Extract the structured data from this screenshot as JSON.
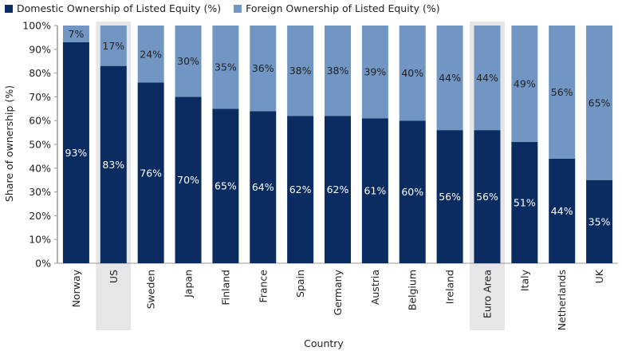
{
  "colors": {
    "domestic": "#0b2c60",
    "foreign": "#7196c4",
    "highlight": "#e6e6e8",
    "axis": "#9a9a9a"
  },
  "chart_data": {
    "type": "bar",
    "stacked": true,
    "title": "",
    "xlabel": "Country",
    "ylabel": "Share of ownership (%)",
    "ylim": [
      0,
      100
    ],
    "yticks": [
      "0%",
      "10%",
      "20%",
      "30%",
      "40%",
      "50%",
      "60%",
      "70%",
      "80%",
      "90%",
      "100%"
    ],
    "legend_position": "top-left",
    "categories": [
      "Norway",
      "US",
      "Sweden",
      "Japan",
      "Finland",
      "France",
      "Spain",
      "Germany",
      "Austria",
      "Belgium",
      "Ireland",
      "Euro Area",
      "Italy",
      "Netherlands",
      "UK"
    ],
    "highlighted": [
      "US",
      "Euro Area"
    ],
    "series": [
      {
        "name": "Domestic Ownership of Listed Equity (%)",
        "values": [
          93,
          83,
          76,
          70,
          65,
          64,
          62,
          62,
          61,
          60,
          56,
          56,
          51,
          44,
          35
        ],
        "labels": [
          "93%",
          "83%",
          "76%",
          "70%",
          "65%",
          "64%",
          "62%",
          "62%",
          "61%",
          "60%",
          "56%",
          "56%",
          "51%",
          "44%",
          "35%"
        ]
      },
      {
        "name": "Foreign Ownership of Listed Equity (%)",
        "values": [
          7,
          17,
          24,
          30,
          35,
          36,
          38,
          38,
          39,
          40,
          44,
          44,
          49,
          56,
          65
        ],
        "labels": [
          "7%",
          "17%",
          "24%",
          "30%",
          "35%",
          "36%",
          "38%",
          "38%",
          "39%",
          "40%",
          "44%",
          "44%",
          "49%",
          "56%",
          "65%"
        ]
      }
    ]
  }
}
